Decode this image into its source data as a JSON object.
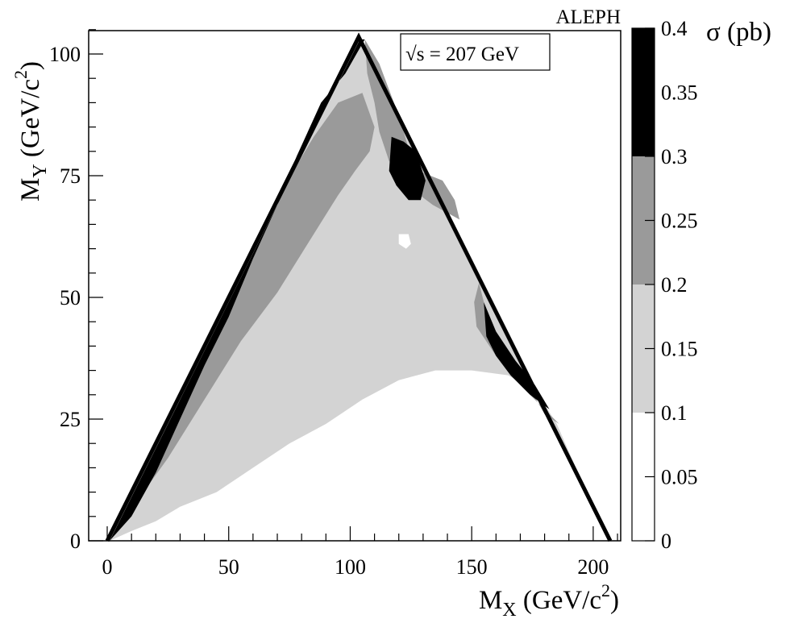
{
  "chart_data": {
    "type": "heatmap",
    "experiment_label": "ALEPH",
    "annotation": "√s = 207 GeV",
    "xlabel": {
      "main": "M",
      "sub": "X",
      "unit_pre": " (GeV/c",
      "sup": "2",
      "unit_post": ")"
    },
    "ylabel": {
      "main": "M",
      "sub": "Y",
      "unit_pre": " (GeV/c",
      "sup": "2",
      "unit_post": ")"
    },
    "xlim": [
      0,
      212
    ],
    "ylim": [
      0,
      106
    ],
    "x_ticks": [
      {
        "value": 0,
        "label": "0"
      },
      {
        "value": 50,
        "label": "50"
      },
      {
        "value": 100,
        "label": "100"
      },
      {
        "value": 150,
        "label": "150"
      },
      {
        "value": 200,
        "label": "200"
      }
    ],
    "y_ticks": [
      {
        "value": 0,
        "label": "0"
      },
      {
        "value": 25,
        "label": "25"
      },
      {
        "value": 50,
        "label": "50"
      },
      {
        "value": 75,
        "label": "75"
      },
      {
        "value": 100,
        "label": "100"
      }
    ],
    "colorbar": {
      "title": "σ (pb)",
      "range": [
        0,
        0.4
      ],
      "ticks": [
        {
          "value": 0,
          "label": "0"
        },
        {
          "value": 0.05,
          "label": "0.05"
        },
        {
          "value": 0.1,
          "label": "0.1"
        },
        {
          "value": 0.15,
          "label": "0.15"
        },
        {
          "value": 0.2,
          "label": "0.2"
        },
        {
          "value": 0.25,
          "label": "0.25"
        },
        {
          "value": 0.3,
          "label": "0.3"
        },
        {
          "value": 0.35,
          "label": "0.35"
        },
        {
          "value": 0.4,
          "label": "0.4"
        }
      ],
      "bands": [
        {
          "from": 0,
          "to": 0.1,
          "color": "#ffffff"
        },
        {
          "from": 0.1,
          "to": 0.2,
          "color": "#d3d3d3"
        },
        {
          "from": 0.2,
          "to": 0.3,
          "color": "#9a9a9a"
        },
        {
          "from": 0.3,
          "to": 0.4,
          "color": "#000000"
        }
      ]
    },
    "kinematic_boundary": [
      [
        0,
        0
      ],
      [
        103.5,
        103.5
      ],
      [
        207,
        0
      ]
    ],
    "regions": [
      {
        "level": "0.1-0.2",
        "color": "#d3d3d3",
        "polygon": [
          [
            1,
            0
          ],
          [
            104,
            103
          ],
          [
            206,
            0
          ],
          [
            185,
            24
          ],
          [
            180,
            28
          ],
          [
            175,
            31
          ],
          [
            165,
            34
          ],
          [
            150,
            35
          ],
          [
            135,
            35
          ],
          [
            120,
            33
          ],
          [
            105,
            29
          ],
          [
            90,
            24
          ],
          [
            75,
            20
          ],
          [
            60,
            15
          ],
          [
            45,
            10
          ],
          [
            30,
            7
          ],
          [
            20,
            4
          ],
          [
            10,
            2
          ]
        ]
      },
      {
        "level": "0.2-0.3",
        "color": "#9a9a9a",
        "polygon": [
          [
            12,
            8
          ],
          [
            30,
            29
          ],
          [
            45,
            45
          ],
          [
            60,
            61
          ],
          [
            73,
            73
          ],
          [
            85,
            83
          ],
          [
            95,
            90
          ],
          [
            105,
            92
          ],
          [
            110,
            85
          ],
          [
            108,
            80
          ],
          [
            102,
            76
          ],
          [
            95,
            71
          ],
          [
            85,
            63
          ],
          [
            70,
            51
          ],
          [
            55,
            41
          ],
          [
            40,
            29
          ],
          [
            25,
            17
          ]
        ]
      },
      {
        "level": "0.2-0.3",
        "color": "#9a9a9a",
        "polygon": [
          [
            106,
            103
          ],
          [
            112,
            98
          ],
          [
            118,
            90
          ],
          [
            122,
            84
          ],
          [
            125,
            79
          ],
          [
            128,
            76
          ],
          [
            138,
            74
          ],
          [
            143,
            70
          ],
          [
            145,
            66
          ],
          [
            134,
            69
          ],
          [
            126,
            72
          ],
          [
            122,
            75
          ],
          [
            116,
            78
          ],
          [
            112,
            84
          ],
          [
            110,
            90
          ],
          [
            107,
            96
          ]
        ]
      },
      {
        "level": "0.2-0.3",
        "color": "#9a9a9a",
        "polygon": [
          [
            153,
            53
          ],
          [
            156,
            47
          ],
          [
            163,
            39
          ],
          [
            172,
            33
          ],
          [
            180,
            26
          ],
          [
            186,
            24
          ],
          [
            178,
            28
          ],
          [
            170,
            32
          ],
          [
            160,
            38
          ],
          [
            152,
            44
          ],
          [
            151,
            49
          ]
        ]
      },
      {
        "level": "0.3-0.4",
        "color": "#000000",
        "polygon": [
          [
            1,
            0
          ],
          [
            104,
            103
          ],
          [
            106,
            103
          ],
          [
            98,
            96
          ],
          [
            88,
            90
          ],
          [
            78,
            79
          ],
          [
            70,
            69
          ],
          [
            60,
            58
          ],
          [
            50,
            46
          ],
          [
            40,
            36
          ],
          [
            30,
            25
          ],
          [
            20,
            14
          ],
          [
            10,
            5
          ]
        ]
      },
      {
        "level": "0.3-0.4",
        "color": "#000000",
        "polygon": [
          [
            117,
            83
          ],
          [
            122,
            82
          ],
          [
            127,
            80
          ],
          [
            131,
            74
          ],
          [
            129,
            70
          ],
          [
            124,
            70
          ],
          [
            119,
            73
          ],
          [
            116,
            76
          ]
        ]
      },
      {
        "level": "0.3-0.4",
        "color": "#000000",
        "polygon": [
          [
            155,
            49
          ],
          [
            160,
            43
          ],
          [
            168,
            37
          ],
          [
            176,
            32
          ],
          [
            182,
            27
          ],
          [
            174,
            30
          ],
          [
            166,
            34
          ],
          [
            160,
            38
          ],
          [
            156,
            42
          ]
        ]
      },
      {
        "level": "0-0.1",
        "color": "#ffffff",
        "polygon": [
          [
            120,
            63
          ],
          [
            124,
            63
          ],
          [
            125,
            61
          ],
          [
            123,
            60
          ],
          [
            120,
            61
          ]
        ]
      }
    ]
  }
}
